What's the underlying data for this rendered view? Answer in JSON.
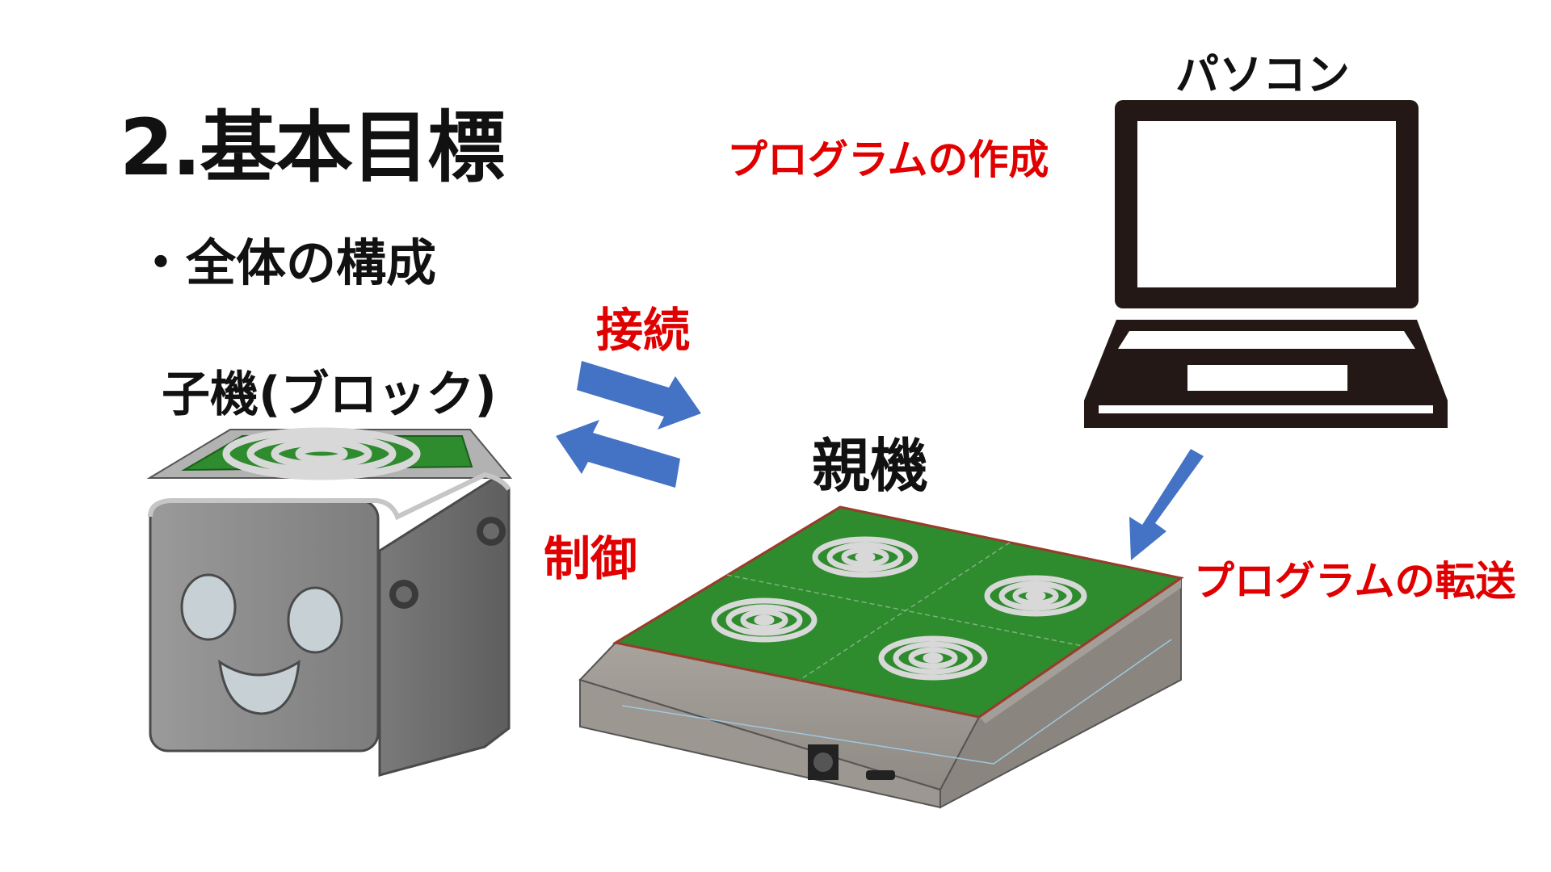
{
  "slide": {
    "title": "2.基本目標",
    "subtitle": "・全体の構成"
  },
  "labels": {
    "pc": "パソコン",
    "program_create": "プログラムの作成",
    "connect": "接続",
    "control": "制御",
    "child": "子機(ブロック)",
    "parent": "親機",
    "program_transfer": "プログラムの転送"
  },
  "colors": {
    "arrow": "#4472c4",
    "red_text": "#e00000",
    "pcb_green": "#2e8b2e",
    "device_gray": "#8c8c8c"
  }
}
